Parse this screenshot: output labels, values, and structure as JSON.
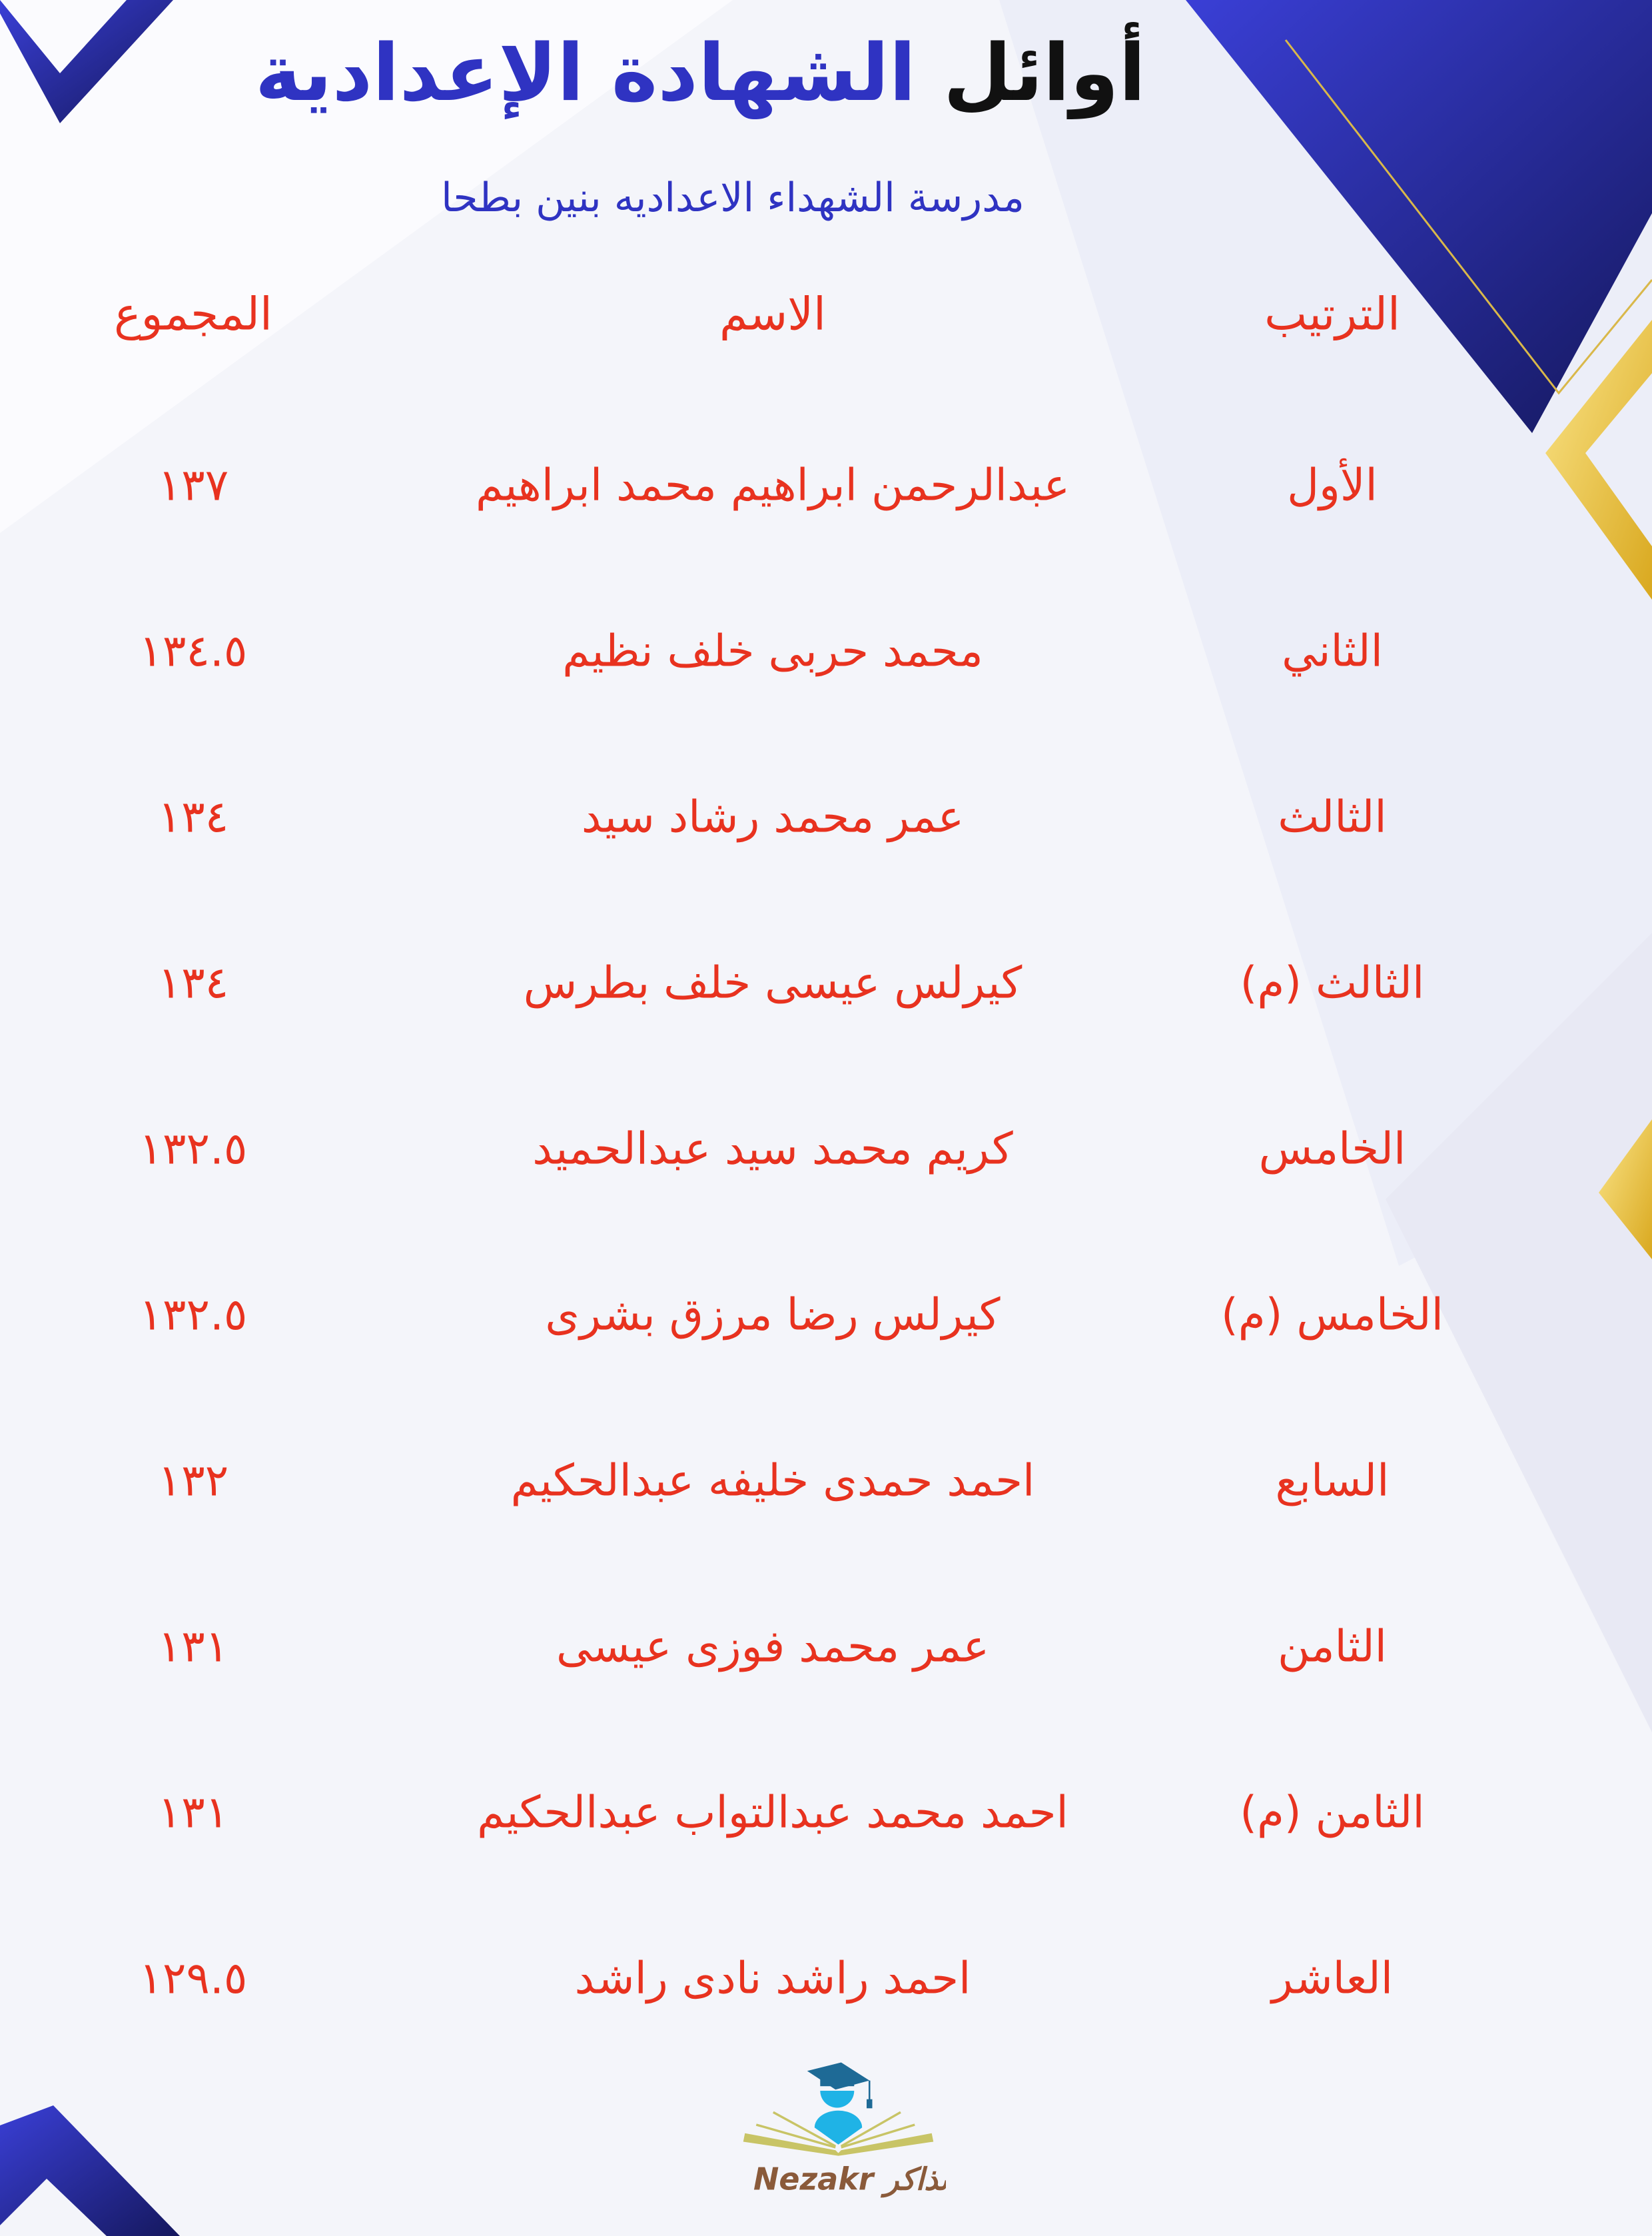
{
  "header": {
    "title_part1": "أوائل",
    "title_part2": "الشهادة الإعدادية",
    "subtitle": "مدرسة الشهداء الاعداديه بنين بطحا"
  },
  "table": {
    "columns": [
      "الترتيب",
      "الاسم",
      "المجموع"
    ],
    "rows": [
      {
        "rank": "الأول",
        "name": "عبدالرحمن ابراهيم محمد ابراهيم",
        "total": "١٣٧"
      },
      {
        "rank": "الثاني",
        "name": "محمد حربى خلف نظيم",
        "total": "١٣٤.٥"
      },
      {
        "rank": "الثالث",
        "name": "عمر محمد رشاد سيد",
        "total": "١٣٤"
      },
      {
        "rank": "الثالث (م)",
        "name": "كيرلس عيسى خلف بطرس",
        "total": "١٣٤"
      },
      {
        "rank": "الخامس",
        "name": "كريم محمد سيد عبدالحميد",
        "total": "١٣٢.٥"
      },
      {
        "rank": "الخامس (م)",
        "name": "كيرلس رضا مرزق بشرى",
        "total": "١٣٢.٥"
      },
      {
        "rank": "السابع",
        "name": "احمد حمدى خليفه عبدالحكيم",
        "total": "١٣٢"
      },
      {
        "rank": "الثامن",
        "name": "عمر محمد فوزى عيسى",
        "total": "١٣١"
      },
      {
        "rank": "الثامن (م)",
        "name": "احمد محمد عبدالتواب عبدالحكيم",
        "total": "١٣١"
      },
      {
        "rank": "العاشر",
        "name": "احمد راشد نادى راشد",
        "total": "١٢٩.٥"
      }
    ]
  },
  "logo": {
    "text_latin": "Nezakr",
    "text_arabic": "نذاكر"
  },
  "colors": {
    "title_blue": "#2f33c2",
    "text_red": "#e8321f",
    "gold": "#e9c33a",
    "navy": "#1b1f8a"
  }
}
